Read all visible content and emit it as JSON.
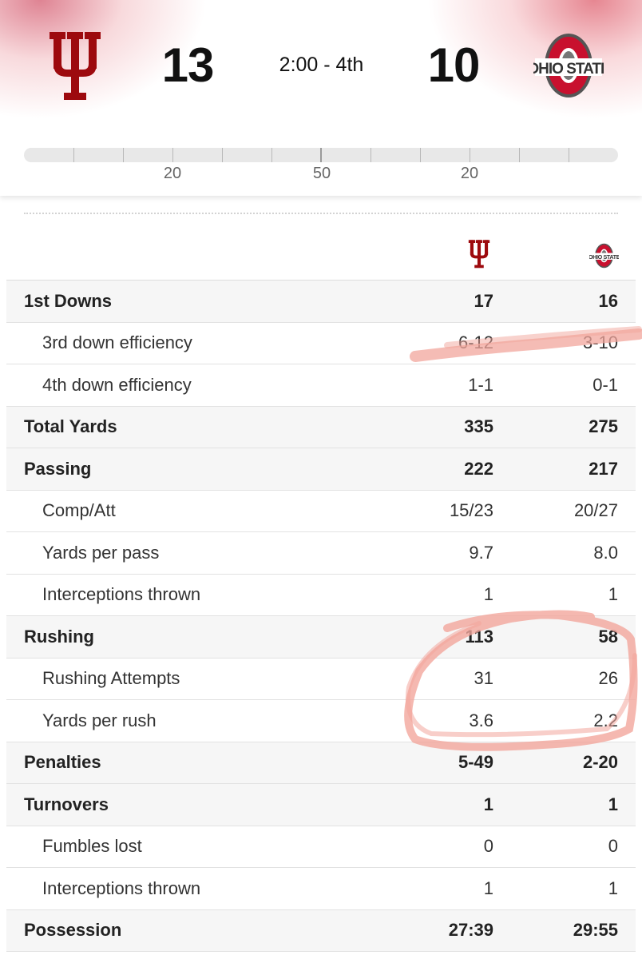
{
  "scoreboard": {
    "home_score": "13",
    "away_score": "10",
    "clock": "2:00 - 4th",
    "home_logo": "indiana-iu-trident-logo",
    "away_logo": "ohio-state-block-o-logo",
    "away_logo_text": "OHIO STATE",
    "brand_colors": {
      "indiana": "#990000",
      "ohio_state": "#bb0000",
      "ohio_state_gray": "#666666"
    }
  },
  "field": {
    "yard_labels": [
      "20",
      "50",
      "20"
    ]
  },
  "stats": {
    "rows": [
      {
        "label": "1st Downs",
        "home": "17",
        "away": "16",
        "kind": "main"
      },
      {
        "label": "3rd down efficiency",
        "home": "6-12",
        "away": "3-10",
        "kind": "sub"
      },
      {
        "label": "4th down efficiency",
        "home": "1-1",
        "away": "0-1",
        "kind": "sub"
      },
      {
        "label": "Total Yards",
        "home": "335",
        "away": "275",
        "kind": "main"
      },
      {
        "label": "Passing",
        "home": "222",
        "away": "217",
        "kind": "main"
      },
      {
        "label": "Comp/Att",
        "home": "15/23",
        "away": "20/27",
        "kind": "sub"
      },
      {
        "label": "Yards per pass",
        "home": "9.7",
        "away": "8.0",
        "kind": "sub"
      },
      {
        "label": "Interceptions thrown",
        "home": "1",
        "away": "1",
        "kind": "sub"
      },
      {
        "label": "Rushing",
        "home": "113",
        "away": "58",
        "kind": "main"
      },
      {
        "label": "Rushing Attempts",
        "home": "31",
        "away": "26",
        "kind": "sub"
      },
      {
        "label": "Yards per rush",
        "home": "3.6",
        "away": "2.2",
        "kind": "sub"
      },
      {
        "label": "Penalties",
        "home": "5-49",
        "away": "2-20",
        "kind": "main"
      },
      {
        "label": "Turnovers",
        "home": "1",
        "away": "1",
        "kind": "main"
      },
      {
        "label": "Fumbles lost",
        "home": "0",
        "away": "0",
        "kind": "sub"
      },
      {
        "label": "Interceptions thrown",
        "home": "1",
        "away": "1",
        "kind": "sub"
      },
      {
        "label": "Possession",
        "home": "27:39",
        "away": "29:55",
        "kind": "main"
      }
    ]
  },
  "annotations": {
    "marker_color": "#f2a69c"
  }
}
